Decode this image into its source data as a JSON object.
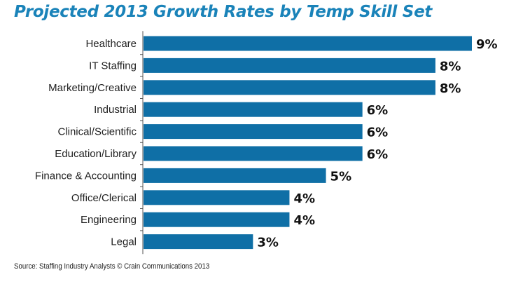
{
  "title": "Projected 2013 Growth Rates by Temp Skill Set",
  "source": "Source: Staffing Industry Analysts © Crain Communications 2013",
  "colors": {
    "bar": "#0f6fa6",
    "title": "#1a83b9",
    "axis": "#555555",
    "label": "#222222"
  },
  "chart_data": {
    "type": "bar",
    "orientation": "horizontal",
    "title": "Projected 2013 Growth Rates by Temp Skill Set",
    "categories": [
      "Healthcare",
      "IT Staffing",
      "Marketing/Creative",
      "Industrial",
      "Clinical/Scientific",
      "Education/Library",
      "Finance & Accounting",
      "Office/Clerical",
      "Engineering",
      "Legal"
    ],
    "values": [
      9,
      8,
      8,
      6,
      6,
      6,
      5,
      4,
      4,
      3
    ],
    "data_labels": [
      "9%",
      "8%",
      "8%",
      "6%",
      "6%",
      "6%",
      "5%",
      "4%",
      "4%",
      "3%"
    ],
    "unit": "%",
    "xlim": [
      0,
      9
    ],
    "grid": false,
    "legend": "none",
    "xlabel": "",
    "ylabel": ""
  }
}
